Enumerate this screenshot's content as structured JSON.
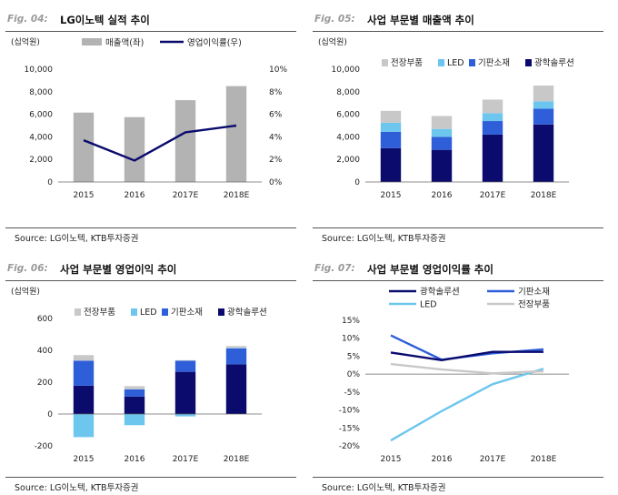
{
  "colors": {
    "gray_bar": "#b3b3b3",
    "navy": "#0b0b6e",
    "blue": "#2e5fd9",
    "light_blue": "#6cc6ee",
    "light_gray": "#c8c8c8"
  },
  "footnote": "Source: LG이노텍, KTB투자증권",
  "chart_data": [
    {
      "id": "p1",
      "fig_label": "Fig. 04:",
      "title": "LG이노텍 실적 추이",
      "type": "bar",
      "unit_label": "(십억원)",
      "categories": [
        "2015",
        "2016",
        "2017E",
        "2018E"
      ],
      "ylim": [
        0,
        10000
      ],
      "yticks": [
        0,
        2000,
        4000,
        6000,
        8000,
        10000
      ],
      "ytick_labels": [
        "0",
        "2,000",
        "4,000",
        "6,000",
        "8,000",
        "10,000"
      ],
      "y2lim": [
        0,
        10
      ],
      "y2ticks": [
        0,
        2,
        4,
        6,
        8,
        10
      ],
      "y2tick_labels": [
        "0%",
        "2%",
        "4%",
        "6%",
        "8%",
        "10%"
      ],
      "series": [
        {
          "name": "매출액(좌)",
          "kind": "bar",
          "axis": "left",
          "color": "#b3b3b3",
          "values": [
            6150,
            5750,
            7250,
            8500
          ]
        },
        {
          "name": "영업이익률(우)",
          "kind": "line",
          "axis": "right",
          "color": "#0b0b6e",
          "values": [
            3.7,
            1.9,
            4.4,
            5.0
          ]
        }
      ]
    },
    {
      "id": "p2",
      "fig_label": "Fig. 05:",
      "title": "사업 부문별 매출액 추이",
      "type": "stacked_bar",
      "unit_label": "(십억원)",
      "categories": [
        "2015",
        "2016",
        "2017E",
        "2018E"
      ],
      "ylim": [
        0,
        10000
      ],
      "yticks": [
        0,
        2000,
        4000,
        6000,
        8000,
        10000
      ],
      "ytick_labels": [
        "0",
        "2,000",
        "4,000",
        "6,000",
        "8,000",
        "10,000"
      ],
      "series": [
        {
          "name": "광학솔루션",
          "color": "#0b0b6e",
          "values": [
            3000,
            2850,
            4200,
            5100
          ]
        },
        {
          "name": "기판소재",
          "color": "#2e5fd9",
          "values": [
            1450,
            1150,
            1200,
            1400
          ]
        },
        {
          "name": "LED",
          "color": "#6cc6ee",
          "values": [
            800,
            700,
            700,
            650
          ]
        },
        {
          "name": "전장부품",
          "color": "#c8c8c8",
          "values": [
            1050,
            1150,
            1200,
            1400
          ]
        }
      ],
      "legend_order": [
        "전장부품",
        "LED",
        "기판소재",
        "광학솔루션"
      ]
    },
    {
      "id": "p3",
      "fig_label": "Fig. 06:",
      "title": "사업 부문별 영업이익 추이",
      "type": "stacked_bar",
      "unit_label": "(십억원)",
      "categories": [
        "2015",
        "2016",
        "2017E",
        "2018E"
      ],
      "ylim": [
        -200,
        600
      ],
      "yticks": [
        -200,
        0,
        200,
        400,
        600
      ],
      "ytick_labels": [
        "-200",
        "0",
        "200",
        "400",
        "600"
      ],
      "series": [
        {
          "name": "광학솔루션",
          "color": "#0b0b6e",
          "values": [
            178,
            110,
            265,
            312
          ]
        },
        {
          "name": "기판소재",
          "color": "#2e5fd9",
          "values": [
            157,
            45,
            70,
            100
          ]
        },
        {
          "name": "LED",
          "color": "#6cc6ee",
          "values": [
            -145,
            -70,
            -15,
            3
          ]
        },
        {
          "name": "전장부품",
          "color": "#c8c8c8",
          "values": [
            35,
            20,
            3,
            12
          ]
        }
      ],
      "legend_order": [
        "전장부품",
        "LED",
        "기판소재",
        "광학솔루션"
      ]
    },
    {
      "id": "p4",
      "fig_label": "Fig. 07:",
      "title": "사업 부문별 영업이익률 추이",
      "type": "line",
      "unit_label": "",
      "categories": [
        "2015",
        "2016",
        "2017E",
        "2018E"
      ],
      "ylim": [
        -20,
        15
      ],
      "yticks": [
        -20,
        -15,
        -10,
        -5,
        0,
        5,
        10,
        15
      ],
      "ytick_labels": [
        "-20%",
        "-15%",
        "-10%",
        "-5%",
        "0%",
        "5%",
        "10%",
        "15%"
      ],
      "series": [
        {
          "name": "광학솔루션",
          "color": "#0b0b6e",
          "values": [
            6.0,
            3.9,
            6.2,
            6.2
          ]
        },
        {
          "name": "기판소재",
          "color": "#2e5fd9",
          "values": [
            10.8,
            4.0,
            5.8,
            6.9
          ]
        },
        {
          "name": "LED",
          "color": "#6cc6ee",
          "values": [
            -18.5,
            -10.3,
            -2.8,
            1.5
          ]
        },
        {
          "name": "전장부품",
          "color": "#c8c8c8",
          "values": [
            2.8,
            1.3,
            0.2,
            0.8
          ]
        }
      ],
      "legend_order": [
        "광학솔루션",
        "기판소재",
        "LED",
        "전장부품"
      ]
    }
  ]
}
